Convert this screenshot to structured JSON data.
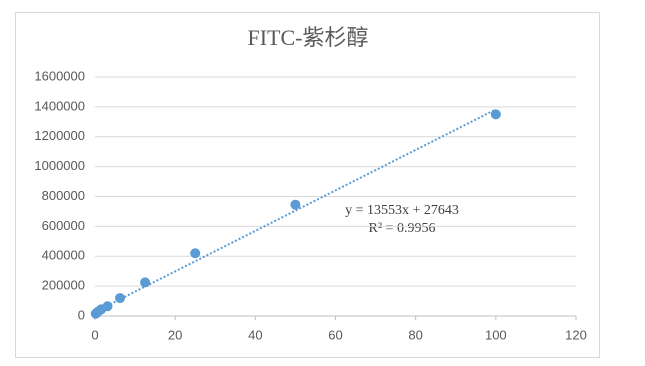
{
  "chart_data": {
    "type": "scatter",
    "title": "FITC-紫杉醇",
    "x": [
      0.195,
      0.39,
      0.78,
      1.56,
      3.125,
      6.25,
      12.5,
      25,
      50,
      100
    ],
    "series": [
      {
        "name": "FITC-紫杉醇",
        "color": "#5b9bd5",
        "values": [
          15000,
          20000,
          30000,
          45000,
          65000,
          120000,
          225000,
          420000,
          745000,
          1350000
        ]
      }
    ],
    "trendline": {
      "slope": 13553,
      "intercept": 27643,
      "color": "#5b9bd5"
    },
    "equation": "y = 13553x + 27643",
    "r_squared": "R² = 0.9956",
    "xlim": [
      0,
      120
    ],
    "xticks": [
      0,
      20,
      40,
      60,
      80,
      100,
      120
    ],
    "ylim": [
      0,
      1600000
    ],
    "yticks": [
      0,
      200000,
      400000,
      600000,
      800000,
      1000000,
      1200000,
      1400000,
      1600000
    ],
    "grid": true
  }
}
